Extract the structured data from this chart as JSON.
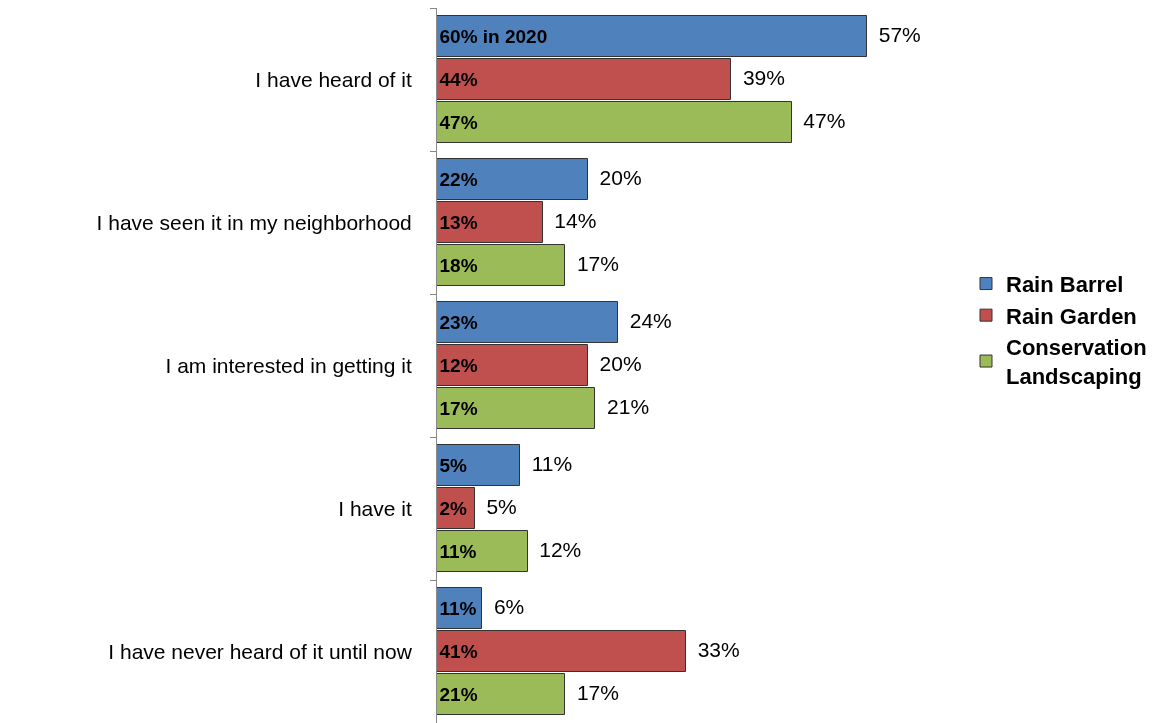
{
  "chart_data": {
    "type": "bar",
    "orientation": "horizontal",
    "legend": "right",
    "categories": [
      "I have heard of it",
      "I have seen it in my neighborhood",
      "I am interested in getting it",
      "I have it",
      "I have never heard of it until now"
    ],
    "series": [
      {
        "name": "Rain Barrel",
        "color": "#4f81bd",
        "values": [
          57,
          20,
          24,
          11,
          6
        ],
        "value_labels": [
          "57%",
          "20%",
          "24%",
          "11%",
          "6%"
        ]
      },
      {
        "name": "Rain Garden",
        "color": "#c0504d",
        "values": [
          39,
          14,
          20,
          5,
          33
        ],
        "value_labels": [
          "39%",
          "14%",
          "20%",
          "5%",
          "33%"
        ]
      },
      {
        "name": "Conservation Landscaping",
        "color": "#9bbb59",
        "values": [
          47,
          17,
          21,
          12,
          17
        ],
        "value_labels": [
          "47%",
          "17%",
          "21%",
          "12%",
          "17%"
        ]
      }
    ],
    "annotations": [
      "60% in 2020",
      "22%",
      "23%",
      "5%",
      "11%",
      "44%",
      "13%",
      "12%",
      "2%",
      "41%",
      "47%",
      "18%",
      "17%",
      "11%",
      "21%"
    ]
  }
}
